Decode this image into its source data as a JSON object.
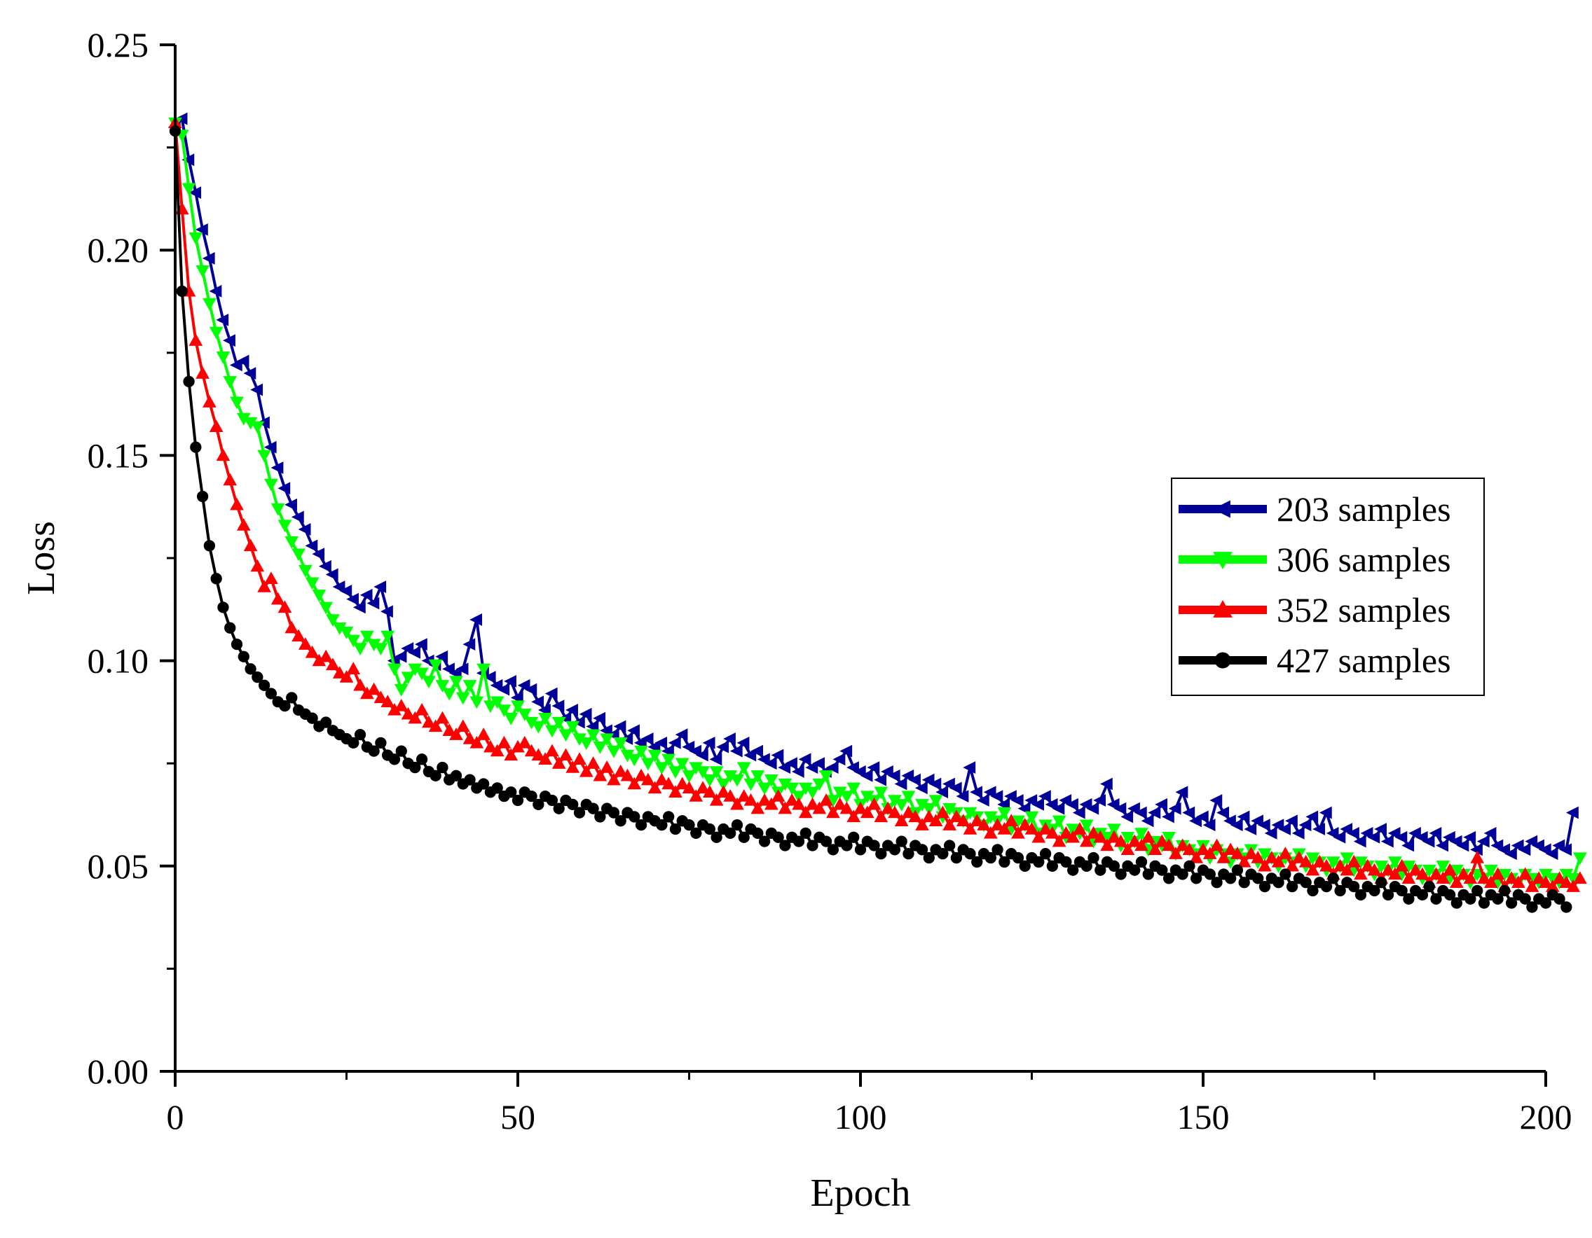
{
  "chart_data": {
    "type": "line",
    "title": "",
    "xlabel": "Epoch",
    "ylabel": "Loss",
    "xlim": [
      0,
      200
    ],
    "ylim": [
      0,
      0.25
    ],
    "xticks": [
      0,
      50,
      100,
      150,
      200
    ],
    "xtick_labels": [
      "0",
      "50",
      "100",
      "150",
      "200"
    ],
    "yticks": [
      0,
      0.05,
      0.1,
      0.15,
      0.2,
      0.25
    ],
    "ytick_labels": [
      "0.00",
      "0.05",
      "0.10",
      "0.15",
      "0.20",
      "0.25"
    ],
    "grid": false,
    "legend_position": "right-middle",
    "x_step": 1,
    "series": [
      {
        "name": "203 samples",
        "color": "#000099",
        "marker": "triangle-left",
        "values": [
          0.23,
          0.232,
          0.222,
          0.214,
          0.205,
          0.198,
          0.19,
          0.183,
          0.178,
          0.172,
          0.173,
          0.17,
          0.166,
          0.158,
          0.152,
          0.147,
          0.142,
          0.138,
          0.135,
          0.132,
          0.128,
          0.126,
          0.123,
          0.121,
          0.118,
          0.117,
          0.115,
          0.113,
          0.116,
          0.114,
          0.118,
          0.112,
          0.1,
          0.101,
          0.103,
          0.102,
          0.104,
          0.1,
          0.099,
          0.101,
          0.098,
          0.097,
          0.098,
          0.104,
          0.11,
          0.097,
          0.096,
          0.094,
          0.093,
          0.095,
          0.091,
          0.094,
          0.093,
          0.09,
          0.088,
          0.092,
          0.089,
          0.086,
          0.088,
          0.085,
          0.087,
          0.084,
          0.086,
          0.083,
          0.082,
          0.084,
          0.081,
          0.083,
          0.08,
          0.081,
          0.079,
          0.08,
          0.078,
          0.08,
          0.082,
          0.079,
          0.078,
          0.077,
          0.08,
          0.076,
          0.079,
          0.081,
          0.078,
          0.08,
          0.077,
          0.078,
          0.076,
          0.075,
          0.077,
          0.074,
          0.075,
          0.073,
          0.076,
          0.074,
          0.075,
          0.073,
          0.074,
          0.076,
          0.078,
          0.074,
          0.073,
          0.072,
          0.074,
          0.071,
          0.073,
          0.072,
          0.07,
          0.072,
          0.071,
          0.069,
          0.071,
          0.07,
          0.068,
          0.07,
          0.069,
          0.067,
          0.074,
          0.068,
          0.066,
          0.068,
          0.067,
          0.065,
          0.067,
          0.066,
          0.064,
          0.066,
          0.065,
          0.067,
          0.065,
          0.064,
          0.066,
          0.065,
          0.063,
          0.065,
          0.064,
          0.066,
          0.07,
          0.065,
          0.064,
          0.062,
          0.064,
          0.063,
          0.061,
          0.063,
          0.065,
          0.062,
          0.064,
          0.068,
          0.063,
          0.061,
          0.062,
          0.06,
          0.066,
          0.063,
          0.061,
          0.06,
          0.062,
          0.059,
          0.061,
          0.06,
          0.058,
          0.06,
          0.059,
          0.061,
          0.058,
          0.06,
          0.062,
          0.059,
          0.063,
          0.058,
          0.057,
          0.059,
          0.058,
          0.056,
          0.058,
          0.057,
          0.059,
          0.056,
          0.058,
          0.057,
          0.055,
          0.058,
          0.057,
          0.056,
          0.058,
          0.055,
          0.057,
          0.056,
          0.055,
          0.057,
          0.054,
          0.056,
          0.058,
          0.055,
          0.054,
          0.053,
          0.055,
          0.054,
          0.056,
          0.055,
          0.054,
          0.053,
          0.055,
          0.054,
          0.063
        ]
      },
      {
        "name": "306 samples",
        "color": "#00ff00",
        "marker": "triangle-down",
        "values": [
          0.231,
          0.228,
          0.215,
          0.203,
          0.195,
          0.187,
          0.18,
          0.174,
          0.168,
          0.163,
          0.159,
          0.158,
          0.157,
          0.15,
          0.143,
          0.137,
          0.133,
          0.129,
          0.126,
          0.122,
          0.119,
          0.116,
          0.113,
          0.11,
          0.108,
          0.107,
          0.105,
          0.103,
          0.106,
          0.104,
          0.103,
          0.106,
          0.098,
          0.093,
          0.096,
          0.098,
          0.097,
          0.095,
          0.099,
          0.094,
          0.092,
          0.095,
          0.091,
          0.094,
          0.09,
          0.098,
          0.089,
          0.09,
          0.088,
          0.086,
          0.089,
          0.087,
          0.085,
          0.084,
          0.086,
          0.083,
          0.085,
          0.082,
          0.084,
          0.081,
          0.08,
          0.082,
          0.079,
          0.081,
          0.078,
          0.08,
          0.077,
          0.076,
          0.078,
          0.075,
          0.077,
          0.074,
          0.076,
          0.073,
          0.075,
          0.072,
          0.074,
          0.073,
          0.071,
          0.073,
          0.07,
          0.072,
          0.071,
          0.074,
          0.07,
          0.072,
          0.069,
          0.071,
          0.068,
          0.07,
          0.069,
          0.067,
          0.069,
          0.068,
          0.07,
          0.072,
          0.066,
          0.068,
          0.067,
          0.069,
          0.065,
          0.067,
          0.066,
          0.068,
          0.064,
          0.066,
          0.065,
          0.067,
          0.063,
          0.065,
          0.064,
          0.066,
          0.062,
          0.064,
          0.063,
          0.061,
          0.063,
          0.062,
          0.06,
          0.062,
          0.061,
          0.063,
          0.059,
          0.061,
          0.06,
          0.062,
          0.058,
          0.06,
          0.059,
          0.061,
          0.057,
          0.059,
          0.058,
          0.06,
          0.056,
          0.058,
          0.057,
          0.059,
          0.055,
          0.057,
          0.056,
          0.058,
          0.054,
          0.056,
          0.055,
          0.057,
          0.053,
          0.055,
          0.054,
          0.053,
          0.055,
          0.052,
          0.054,
          0.053,
          0.051,
          0.053,
          0.052,
          0.054,
          0.051,
          0.053,
          0.052,
          0.05,
          0.052,
          0.051,
          0.053,
          0.05,
          0.052,
          0.051,
          0.049,
          0.051,
          0.05,
          0.052,
          0.049,
          0.051,
          0.05,
          0.048,
          0.05,
          0.049,
          0.051,
          0.048,
          0.05,
          0.049,
          0.047,
          0.049,
          0.048,
          0.05,
          0.047,
          0.049,
          0.048,
          0.046,
          0.048,
          0.047,
          0.049,
          0.046,
          0.048,
          0.047,
          0.046,
          0.048,
          0.047,
          0.046,
          0.048,
          0.047,
          0.046,
          0.048,
          0.047,
          0.052
        ]
      },
      {
        "name": "352 samples",
        "color": "#ff0000",
        "marker": "triangle-up",
        "values": [
          0.231,
          0.21,
          0.19,
          0.178,
          0.17,
          0.163,
          0.157,
          0.15,
          0.144,
          0.138,
          0.133,
          0.128,
          0.123,
          0.118,
          0.12,
          0.115,
          0.113,
          0.108,
          0.106,
          0.104,
          0.102,
          0.1,
          0.101,
          0.099,
          0.097,
          0.096,
          0.098,
          0.094,
          0.092,
          0.093,
          0.091,
          0.09,
          0.088,
          0.089,
          0.087,
          0.086,
          0.088,
          0.085,
          0.084,
          0.086,
          0.083,
          0.082,
          0.084,
          0.081,
          0.08,
          0.082,
          0.079,
          0.078,
          0.08,
          0.077,
          0.079,
          0.08,
          0.078,
          0.077,
          0.076,
          0.078,
          0.075,
          0.077,
          0.074,
          0.076,
          0.073,
          0.075,
          0.072,
          0.074,
          0.071,
          0.073,
          0.072,
          0.07,
          0.072,
          0.071,
          0.069,
          0.071,
          0.07,
          0.068,
          0.07,
          0.069,
          0.067,
          0.069,
          0.068,
          0.066,
          0.068,
          0.067,
          0.065,
          0.067,
          0.066,
          0.064,
          0.066,
          0.065,
          0.067,
          0.064,
          0.066,
          0.065,
          0.063,
          0.065,
          0.064,
          0.066,
          0.063,
          0.065,
          0.064,
          0.062,
          0.064,
          0.063,
          0.065,
          0.062,
          0.064,
          0.063,
          0.061,
          0.063,
          0.062,
          0.06,
          0.062,
          0.061,
          0.063,
          0.06,
          0.062,
          0.061,
          0.059,
          0.061,
          0.06,
          0.058,
          0.06,
          0.059,
          0.061,
          0.058,
          0.06,
          0.059,
          0.057,
          0.059,
          0.058,
          0.056,
          0.058,
          0.057,
          0.059,
          0.056,
          0.058,
          0.057,
          0.055,
          0.057,
          0.056,
          0.054,
          0.056,
          0.055,
          0.057,
          0.054,
          0.056,
          0.055,
          0.053,
          0.055,
          0.054,
          0.052,
          0.054,
          0.053,
          0.055,
          0.052,
          0.054,
          0.053,
          0.051,
          0.053,
          0.052,
          0.05,
          0.052,
          0.051,
          0.053,
          0.05,
          0.052,
          0.051,
          0.049,
          0.051,
          0.05,
          0.048,
          0.05,
          0.049,
          0.051,
          0.048,
          0.05,
          0.049,
          0.047,
          0.049,
          0.048,
          0.05,
          0.047,
          0.049,
          0.048,
          0.046,
          0.048,
          0.047,
          0.049,
          0.046,
          0.048,
          0.047,
          0.052,
          0.047,
          0.046,
          0.048,
          0.045,
          0.047,
          0.046,
          0.048,
          0.045,
          0.047,
          0.046,
          0.045,
          0.047,
          0.046,
          0.045,
          0.047
        ]
      },
      {
        "name": "427 samples",
        "color": "#000000",
        "marker": "circle",
        "values": [
          0.229,
          0.19,
          0.168,
          0.152,
          0.14,
          0.128,
          0.12,
          0.113,
          0.108,
          0.104,
          0.101,
          0.098,
          0.096,
          0.094,
          0.092,
          0.09,
          0.089,
          0.091,
          0.088,
          0.087,
          0.086,
          0.084,
          0.085,
          0.083,
          0.082,
          0.081,
          0.08,
          0.082,
          0.079,
          0.078,
          0.08,
          0.077,
          0.076,
          0.078,
          0.075,
          0.074,
          0.076,
          0.073,
          0.072,
          0.074,
          0.071,
          0.072,
          0.07,
          0.071,
          0.069,
          0.07,
          0.068,
          0.069,
          0.067,
          0.068,
          0.066,
          0.068,
          0.067,
          0.065,
          0.067,
          0.066,
          0.064,
          0.066,
          0.065,
          0.063,
          0.065,
          0.064,
          0.062,
          0.064,
          0.063,
          0.061,
          0.063,
          0.062,
          0.06,
          0.062,
          0.061,
          0.06,
          0.062,
          0.059,
          0.061,
          0.06,
          0.058,
          0.06,
          0.059,
          0.057,
          0.059,
          0.058,
          0.06,
          0.057,
          0.059,
          0.058,
          0.056,
          0.058,
          0.057,
          0.055,
          0.057,
          0.056,
          0.058,
          0.055,
          0.057,
          0.056,
          0.054,
          0.056,
          0.055,
          0.057,
          0.054,
          0.056,
          0.055,
          0.053,
          0.055,
          0.054,
          0.056,
          0.053,
          0.055,
          0.054,
          0.052,
          0.054,
          0.053,
          0.055,
          0.052,
          0.054,
          0.053,
          0.051,
          0.053,
          0.052,
          0.054,
          0.051,
          0.053,
          0.052,
          0.05,
          0.052,
          0.051,
          0.053,
          0.05,
          0.052,
          0.051,
          0.049,
          0.051,
          0.05,
          0.052,
          0.049,
          0.051,
          0.05,
          0.048,
          0.05,
          0.049,
          0.051,
          0.048,
          0.05,
          0.049,
          0.047,
          0.049,
          0.048,
          0.05,
          0.047,
          0.049,
          0.048,
          0.046,
          0.048,
          0.047,
          0.049,
          0.046,
          0.048,
          0.047,
          0.045,
          0.047,
          0.046,
          0.048,
          0.045,
          0.047,
          0.046,
          0.044,
          0.046,
          0.045,
          0.047,
          0.044,
          0.046,
          0.045,
          0.043,
          0.045,
          0.044,
          0.046,
          0.043,
          0.045,
          0.044,
          0.042,
          0.044,
          0.043,
          0.045,
          0.042,
          0.044,
          0.043,
          0.041,
          0.043,
          0.042,
          0.044,
          0.041,
          0.043,
          0.042,
          0.044,
          0.041,
          0.043,
          0.042,
          0.04,
          0.042,
          0.041,
          0.043,
          0.042,
          0.04
        ]
      }
    ]
  }
}
